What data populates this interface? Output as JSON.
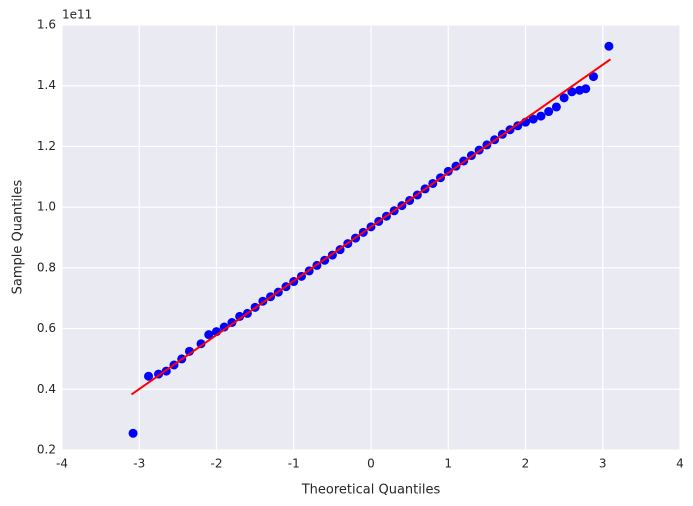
{
  "chart_data": {
    "type": "scatter",
    "x_label": "Theoretical Quantiles",
    "y_label": "Sample Quantiles",
    "y_offset_label": "1e11",
    "xlim": [
      -4,
      4
    ],
    "xticks": [
      -4,
      -3,
      -2,
      -1,
      0,
      1,
      2,
      3,
      4
    ],
    "ylim": [
      0.2,
      1.6
    ],
    "yticks": [
      0.2,
      0.4,
      0.6,
      0.8,
      {
        "value": 1.0,
        "label": "1.0"
      },
      1.2,
      1.4,
      1.6
    ],
    "grid": true,
    "series": [
      {
        "kind": "points",
        "color": "#0000ff",
        "x": [
          -3.08,
          -2.88,
          -2.75,
          -2.65,
          -2.55,
          -2.45,
          -2.35,
          -2.2,
          -2.1,
          -2.0,
          -1.9,
          -1.8,
          -1.7,
          -1.6,
          -1.5,
          -1.4,
          -1.3,
          -1.2,
          -1.1,
          -1.0,
          -0.9,
          -0.8,
          -0.7,
          -0.6,
          -0.5,
          -0.4,
          -0.3,
          -0.2,
          -0.1,
          0,
          0.1,
          0.2,
          0.3,
          0.4,
          0.5,
          0.6,
          0.7,
          0.8,
          0.9,
          1.0,
          1.1,
          1.2,
          1.3,
          1.4,
          1.5,
          1.6,
          1.7,
          1.8,
          1.9,
          2.0,
          2.1,
          2.2,
          2.3,
          2.4,
          2.5,
          2.6,
          2.7,
          2.78,
          2.88,
          3.08
        ],
        "values": [
          0.255,
          0.443,
          0.45,
          0.46,
          0.48,
          0.5,
          0.525,
          0.55,
          0.58,
          0.59,
          0.605,
          0.62,
          0.64,
          0.65,
          0.67,
          0.69,
          0.705,
          0.72,
          0.738,
          0.755,
          0.772,
          0.79,
          0.808,
          0.825,
          0.842,
          0.86,
          0.88,
          0.898,
          0.917,
          0.935,
          0.953,
          0.97,
          0.988,
          1.005,
          1.022,
          1.04,
          1.06,
          1.078,
          1.097,
          1.118,
          1.135,
          1.152,
          1.17,
          1.188,
          1.205,
          1.222,
          1.24,
          1.255,
          1.268,
          1.28,
          1.29,
          1.3,
          1.315,
          1.33,
          1.36,
          1.38,
          1.385,
          1.39,
          1.43,
          1.53
        ]
      },
      {
        "kind": "line",
        "color": "#ff0000",
        "x": [
          -3.1,
          3.1
        ],
        "values": [
          0.383,
          1.487
        ]
      }
    ]
  }
}
